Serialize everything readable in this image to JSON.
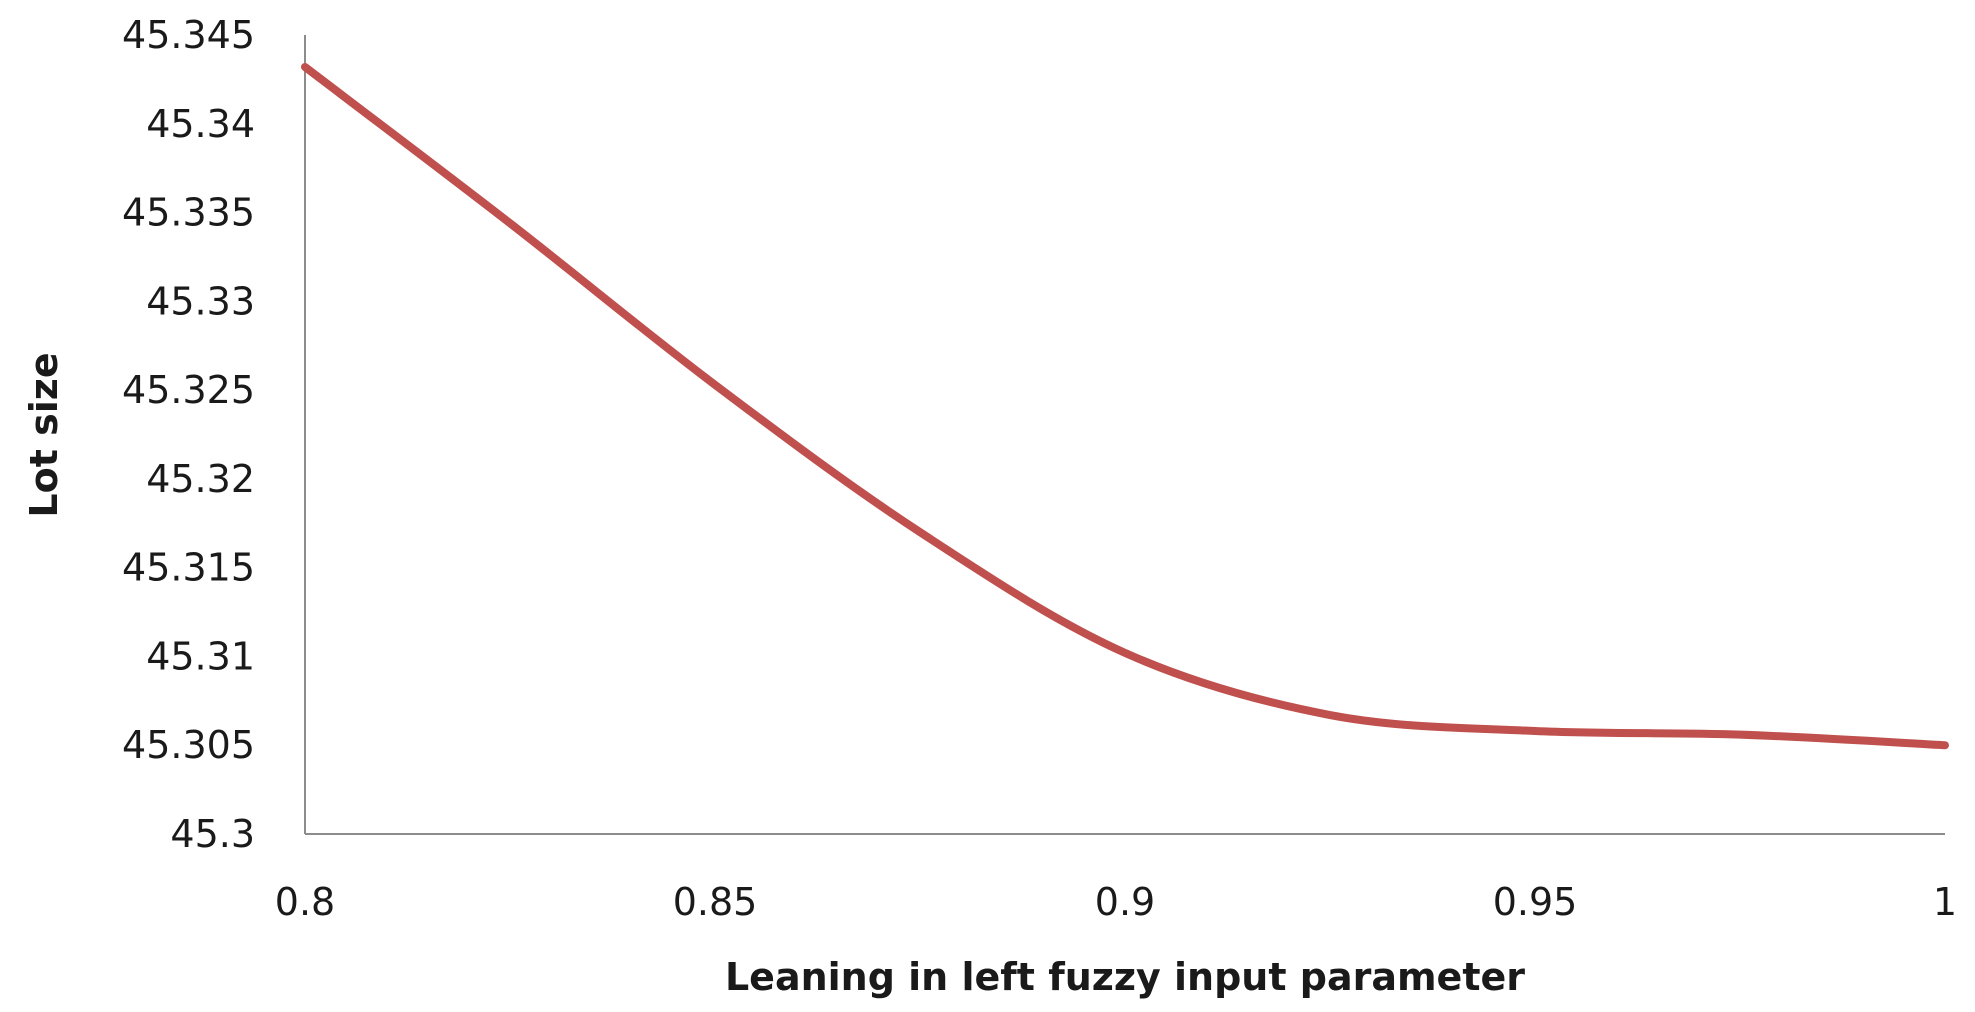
{
  "chart_data": {
    "type": "line",
    "xlabel": "Leaning in left fuzzy input parameter",
    "ylabel": "Lot size",
    "xlim": [
      0.8,
      1.0
    ],
    "ylim": [
      45.3,
      45.345
    ],
    "x_ticks": [
      "0.8",
      "0.85",
      "0.9",
      "0.95",
      "1"
    ],
    "y_ticks": [
      "45.3",
      "45.305",
      "45.31",
      "45.315",
      "45.32",
      "45.325",
      "45.33",
      "45.335",
      "45.34",
      "45.345"
    ],
    "grid": false,
    "legend": "none",
    "series": [
      {
        "color": "#c0504d",
        "x": [
          0.8,
          0.825,
          0.85,
          0.875,
          0.9,
          0.925,
          0.95,
          0.975,
          1.0
        ],
        "y": [
          45.3432,
          45.3344,
          45.3253,
          45.317,
          45.3102,
          45.3067,
          45.3058,
          45.3056,
          45.305
        ]
      }
    ]
  }
}
